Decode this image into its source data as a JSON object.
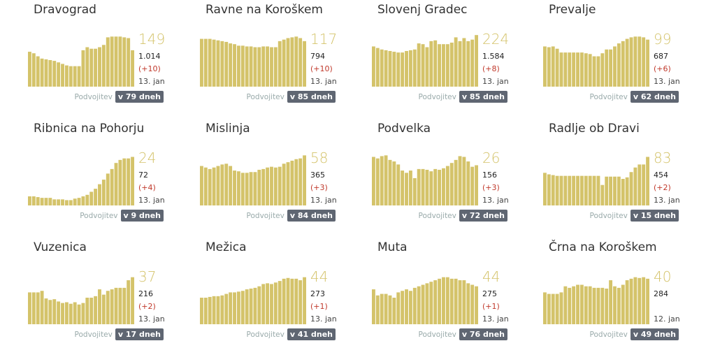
{
  "bar_color": "#d4c36a",
  "big_color": "#d4c36a",
  "delta_color": "#c0392b",
  "badge_color": "#5f6672",
  "doubling_label": "Podvojitev",
  "chart_data": [
    {
      "type": "bar",
      "title": "Dravograd",
      "big": "149",
      "total": "1.014",
      "delta": "(+10)",
      "date": "13. jan",
      "doubling": "v 79 dneh",
      "values": [
        46,
        44,
        40,
        37,
        36,
        35,
        34,
        32,
        30,
        28,
        27,
        27,
        27,
        48,
        52,
        50,
        50,
        52,
        55,
        65,
        66,
        66,
        66,
        65,
        64,
        48
      ]
    },
    {
      "type": "bar",
      "title": "Ravne na Koroškem",
      "big": "117",
      "total": "794",
      "delta": "(+10)",
      "date": "13. jan",
      "doubling": "v 85 dneh",
      "values": [
        63,
        63,
        63,
        62,
        61,
        60,
        59,
        57,
        56,
        54,
        54,
        53,
        53,
        52,
        52,
        53,
        53,
        52,
        52,
        60,
        62,
        64,
        65,
        66,
        64,
        60
      ]
    },
    {
      "type": "bar",
      "title": "Slovenj Gradec",
      "big": "224",
      "total": "1.584",
      "delta": "(+8)",
      "date": "13. jan",
      "doubling": "v 85 dneh",
      "values": [
        53,
        51,
        49,
        48,
        47,
        46,
        45,
        45,
        47,
        48,
        49,
        57,
        56,
        52,
        60,
        61,
        56,
        56,
        56,
        58,
        65,
        60,
        64,
        60,
        62,
        68
      ]
    },
    {
      "type": "bar",
      "title": "Prevalje",
      "big": "99",
      "total": "687",
      "delta": "(+6)",
      "date": "13. jan",
      "doubling": "v 62 dneh",
      "values": [
        53,
        52,
        53,
        50,
        45,
        45,
        45,
        45,
        45,
        45,
        44,
        43,
        40,
        40,
        44,
        49,
        49,
        53,
        57,
        60,
        63,
        65,
        66,
        66,
        65,
        62
      ]
    },
    {
      "type": "bar",
      "title": "Ribnica na Pohorju",
      "big": "24",
      "total": "72",
      "delta": "(+4)",
      "date": "13. jan",
      "doubling": "v 9 dneh",
      "values": [
        12,
        12,
        11,
        10,
        10,
        10,
        8,
        8,
        8,
        7,
        7,
        9,
        10,
        12,
        14,
        18,
        22,
        28,
        34,
        42,
        48,
        56,
        60,
        62,
        62,
        64
      ]
    },
    {
      "type": "bar",
      "title": "Mislinja",
      "big": "58",
      "total": "365",
      "delta": "(+3)",
      "date": "13. jan",
      "doubling": "v 84 dneh",
      "values": [
        52,
        50,
        48,
        50,
        52,
        54,
        55,
        52,
        46,
        45,
        43,
        43,
        44,
        44,
        47,
        48,
        50,
        51,
        50,
        51,
        55,
        57,
        59,
        61,
        62,
        66
      ]
    },
    {
      "type": "bar",
      "title": "Podvelka",
      "big": "26",
      "total": "156",
      "delta": "(+3)",
      "date": "13. jan",
      "doubling": "v 72 dneh",
      "values": [
        64,
        62,
        65,
        66,
        60,
        58,
        54,
        46,
        43,
        46,
        36,
        48,
        48,
        47,
        45,
        48,
        47,
        49,
        52,
        56,
        60,
        65,
        64,
        58,
        51,
        53
      ]
    },
    {
      "type": "bar",
      "title": "Radlje ob Dravi",
      "big": "83",
      "total": "454",
      "delta": "(+2)",
      "date": "13. jan",
      "doubling": "v 15 dneh",
      "values": [
        43,
        41,
        40,
        39,
        39,
        39,
        39,
        39,
        39,
        39,
        39,
        39,
        39,
        39,
        27,
        38,
        38,
        38,
        38,
        35,
        37,
        44,
        50,
        54,
        54,
        64
      ]
    },
    {
      "type": "bar",
      "title": "Vuzenica",
      "big": "37",
      "total": "216",
      "delta": "(+2)",
      "date": "13. jan",
      "doubling": "v 17 dneh",
      "values": [
        42,
        42,
        42,
        44,
        34,
        32,
        33,
        30,
        28,
        29,
        27,
        29,
        26,
        28,
        35,
        35,
        37,
        46,
        39,
        44,
        46,
        48,
        48,
        48,
        58,
        62
      ]
    },
    {
      "type": "bar",
      "title": "Mežica",
      "big": "44",
      "total": "273",
      "delta": "(+1)",
      "date": "13. jan",
      "doubling": "v 41 dneh",
      "values": [
        35,
        35,
        36,
        37,
        37,
        38,
        40,
        42,
        42,
        43,
        44,
        46,
        47,
        48,
        50,
        53,
        54,
        53,
        55,
        57,
        60,
        61,
        60,
        60,
        58,
        62
      ]
    },
    {
      "type": "bar",
      "title": "Muta",
      "big": "44",
      "total": "275",
      "delta": "(+1)",
      "date": "13. jan",
      "doubling": "v 76 dneh",
      "values": [
        46,
        38,
        40,
        40,
        38,
        35,
        42,
        44,
        46,
        44,
        48,
        50,
        52,
        54,
        56,
        58,
        60,
        62,
        62,
        60,
        60,
        58,
        58,
        54,
        52,
        50
      ]
    },
    {
      "type": "bar",
      "title": "Črna na Koroškem",
      "big": "40",
      "total": "284",
      "delta": "",
      "date": "12. jan",
      "doubling": "v 49 dneh",
      "values": [
        42,
        40,
        40,
        40,
        42,
        50,
        48,
        50,
        52,
        52,
        50,
        50,
        48,
        48,
        48,
        47,
        58,
        50,
        48,
        52,
        58,
        60,
        62,
        61,
        62,
        60
      ]
    }
  ]
}
